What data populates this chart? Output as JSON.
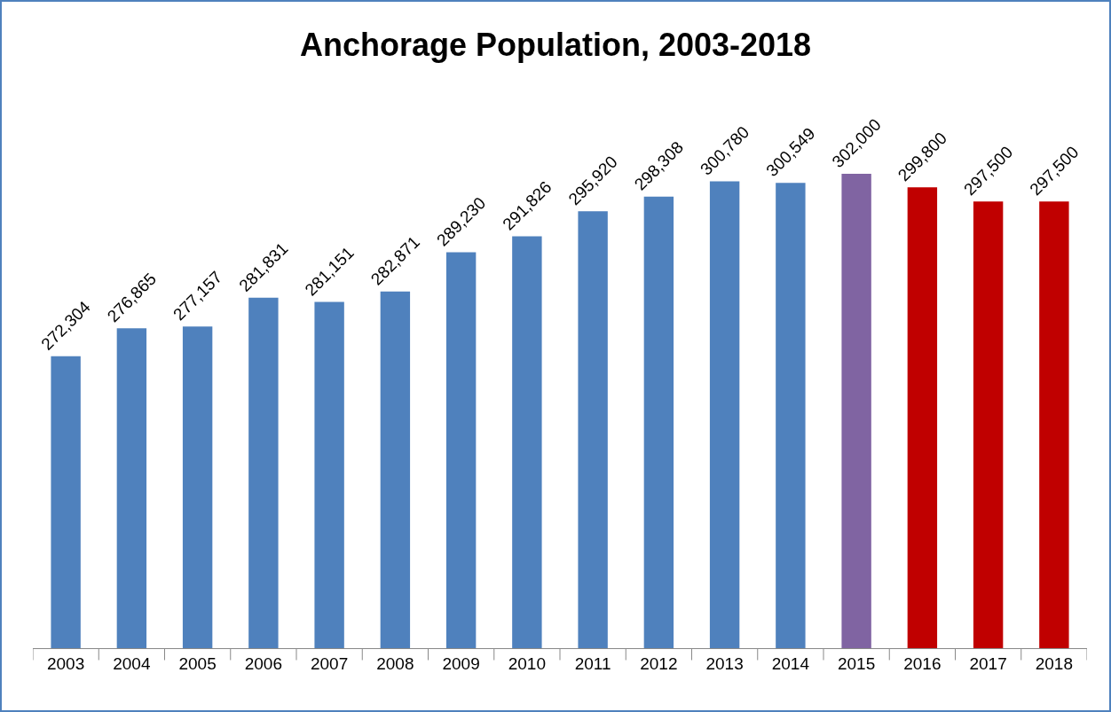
{
  "chart_data": {
    "type": "bar",
    "title": "Anchorage Population, 2003-2018",
    "categories": [
      "2003",
      "2004",
      "2005",
      "2006",
      "2007",
      "2008",
      "2009",
      "2010",
      "2011",
      "2012",
      "2013",
      "2014",
      "2015",
      "2016",
      "2017",
      "2018"
    ],
    "values": [
      272304,
      276865,
      277157,
      281831,
      281151,
      282871,
      289230,
      291826,
      295920,
      298308,
      300780,
      300549,
      302000,
      299800,
      297500,
      297500
    ],
    "colors": [
      "#4f81bd",
      "#4f81bd",
      "#4f81bd",
      "#4f81bd",
      "#4f81bd",
      "#4f81bd",
      "#4f81bd",
      "#4f81bd",
      "#4f81bd",
      "#4f81bd",
      "#4f81bd",
      "#4f81bd",
      "#8064a2",
      "#c00000",
      "#c00000",
      "#c00000"
    ],
    "value_labels": [
      "272,304",
      "276,865",
      "277,157",
      "281,831",
      "281,151",
      "282,871",
      "289,230",
      "291,826",
      "295,920",
      "298,308",
      "300,780",
      "300,549",
      "302,000",
      "299,800",
      "297,500",
      "297,500"
    ],
    "tick_labels": "x"
  }
}
